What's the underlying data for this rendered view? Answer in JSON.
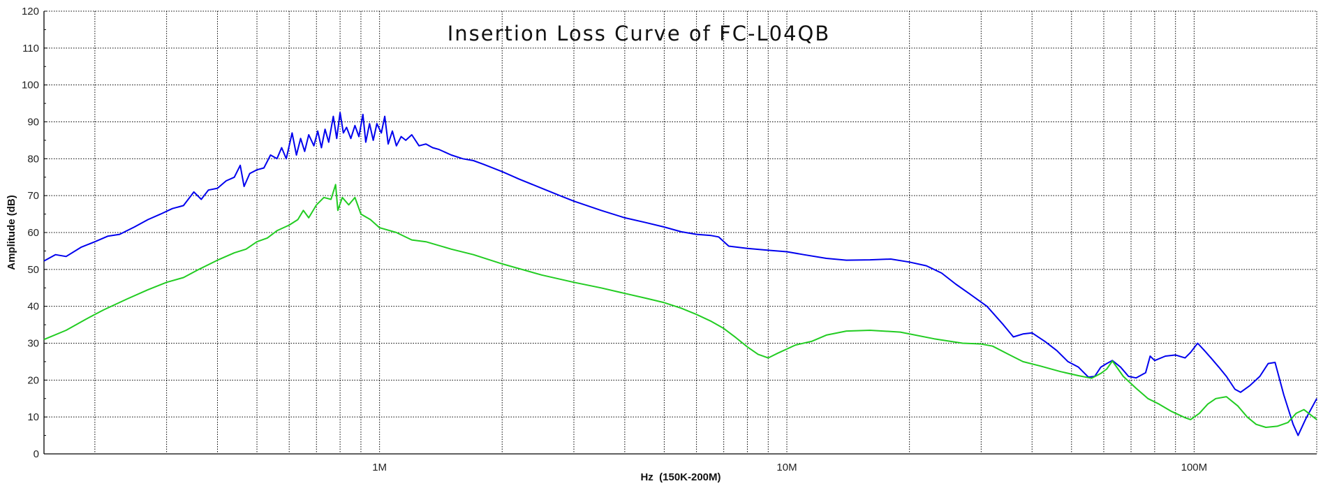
{
  "chart_data": {
    "type": "line",
    "title": "Insertion Loss Curve of FC-L04QB",
    "xlabel": "Hz  (150K-200M)",
    "ylabel": "Amplitude (dB)",
    "xscale": "log",
    "xlim": [
      150000,
      200000000
    ],
    "ylim": [
      0,
      120
    ],
    "grid": true,
    "yticks": [
      0,
      10,
      20,
      30,
      40,
      50,
      60,
      70,
      80,
      90,
      100,
      110,
      120
    ],
    "xtick_labels": [
      {
        "value": 1000000,
        "label": "1M"
      },
      {
        "value": 10000000,
        "label": "10M"
      },
      {
        "value": 100000000,
        "label": "100M"
      }
    ],
    "series": [
      {
        "name": "blue",
        "color": "#0000ee",
        "points": [
          [
            150000,
            52.3
          ],
          [
            160000,
            54
          ],
          [
            170000,
            53.5
          ],
          [
            185000,
            56
          ],
          [
            200000,
            57.5
          ],
          [
            215000,
            59
          ],
          [
            230000,
            59.5
          ],
          [
            250000,
            61.5
          ],
          [
            270000,
            63.5
          ],
          [
            290000,
            65
          ],
          [
            310000,
            66.5
          ],
          [
            330000,
            67.3
          ],
          [
            350000,
            71
          ],
          [
            365000,
            69
          ],
          [
            380000,
            71.5
          ],
          [
            400000,
            72
          ],
          [
            420000,
            74
          ],
          [
            440000,
            75
          ],
          [
            455000,
            78.2
          ],
          [
            465000,
            72.5
          ],
          [
            480000,
            76
          ],
          [
            500000,
            77
          ],
          [
            520000,
            77.5
          ],
          [
            540000,
            81
          ],
          [
            560000,
            80
          ],
          [
            575000,
            83
          ],
          [
            590000,
            80
          ],
          [
            610000,
            87
          ],
          [
            625000,
            81
          ],
          [
            640000,
            85.5
          ],
          [
            655000,
            82
          ],
          [
            670000,
            86.5
          ],
          [
            690000,
            83.5
          ],
          [
            705000,
            87.5
          ],
          [
            720000,
            83
          ],
          [
            735000,
            88
          ],
          [
            750000,
            84.5
          ],
          [
            770000,
            91.5
          ],
          [
            785000,
            85.5
          ],
          [
            800000,
            92.5
          ],
          [
            815000,
            87
          ],
          [
            830000,
            88.5
          ],
          [
            850000,
            85.5
          ],
          [
            870000,
            89
          ],
          [
            890000,
            86
          ],
          [
            910000,
            92
          ],
          [
            925000,
            84.5
          ],
          [
            945000,
            89.5
          ],
          [
            965000,
            85
          ],
          [
            985000,
            89.5
          ],
          [
            1010000,
            87
          ],
          [
            1030000,
            91.5
          ],
          [
            1050000,
            84
          ],
          [
            1075000,
            87.5
          ],
          [
            1100000,
            83.5
          ],
          [
            1130000,
            86
          ],
          [
            1160000,
            85
          ],
          [
            1200000,
            86.5
          ],
          [
            1250000,
            83.5
          ],
          [
            1300000,
            84
          ],
          [
            1350000,
            83
          ],
          [
            1400000,
            82.5
          ],
          [
            1500000,
            81
          ],
          [
            1600000,
            80
          ],
          [
            1700000,
            79.5
          ],
          [
            1800000,
            78.5
          ],
          [
            2000000,
            76.5
          ],
          [
            2200000,
            74.5
          ],
          [
            2500000,
            72
          ],
          [
            2800000,
            69.8
          ],
          [
            3000000,
            68.5
          ],
          [
            3500000,
            66
          ],
          [
            4000000,
            64
          ],
          [
            4500000,
            62.7
          ],
          [
            5000000,
            61.5
          ],
          [
            5500000,
            60.2
          ],
          [
            6000000,
            59.5
          ],
          [
            6500000,
            59.2
          ],
          [
            6800000,
            58.8
          ],
          [
            7200000,
            56.3
          ],
          [
            8000000,
            55.7
          ],
          [
            9000000,
            55.2
          ],
          [
            10000000,
            54.8
          ],
          [
            11000000,
            54
          ],
          [
            12500000,
            53
          ],
          [
            14000000,
            52.5
          ],
          [
            16000000,
            52.6
          ],
          [
            18000000,
            52.8
          ],
          [
            20000000,
            52
          ],
          [
            22000000,
            51
          ],
          [
            24000000,
            49
          ],
          [
            26000000,
            46
          ],
          [
            28000000,
            43.5
          ],
          [
            31000000,
            40
          ],
          [
            34000000,
            35
          ],
          [
            36000000,
            31.7
          ],
          [
            38000000,
            32.5
          ],
          [
            40000000,
            32.8
          ],
          [
            43000000,
            30.5
          ],
          [
            46000000,
            28
          ],
          [
            49000000,
            25
          ],
          [
            52000000,
            23.5
          ],
          [
            55000000,
            20.8
          ],
          [
            57000000,
            21
          ],
          [
            59000000,
            23.5
          ],
          [
            61000000,
            24.5
          ],
          [
            63000000,
            25.3
          ],
          [
            66000000,
            23.5
          ],
          [
            69000000,
            21
          ],
          [
            72000000,
            20.6
          ],
          [
            76000000,
            22
          ],
          [
            78000000,
            26.5
          ],
          [
            80000000,
            25.3
          ],
          [
            85000000,
            26.5
          ],
          [
            90000000,
            26.8
          ],
          [
            95000000,
            26
          ],
          [
            98000000,
            27.5
          ],
          [
            102000000,
            30
          ],
          [
            106000000,
            28
          ],
          [
            110000000,
            26
          ],
          [
            115000000,
            23.5
          ],
          [
            120000000,
            21
          ],
          [
            126000000,
            17.5
          ],
          [
            130000000,
            16.7
          ],
          [
            137000000,
            18.5
          ],
          [
            145000000,
            21
          ],
          [
            152000000,
            24.5
          ],
          [
            158000000,
            24.8
          ],
          [
            166000000,
            16
          ],
          [
            175000000,
            8
          ],
          [
            180000000,
            5
          ],
          [
            188000000,
            9.5
          ],
          [
            200000000,
            15
          ]
        ]
      },
      {
        "name": "green",
        "color": "#22cc22",
        "points": [
          [
            150000,
            31
          ],
          [
            170000,
            33.5
          ],
          [
            190000,
            36.5
          ],
          [
            210000,
            39
          ],
          [
            240000,
            42
          ],
          [
            270000,
            44.5
          ],
          [
            300000,
            46.5
          ],
          [
            330000,
            47.8
          ],
          [
            360000,
            50
          ],
          [
            400000,
            52.5
          ],
          [
            440000,
            54.5
          ],
          [
            470000,
            55.5
          ],
          [
            500000,
            57.5
          ],
          [
            530000,
            58.5
          ],
          [
            560000,
            60.5
          ],
          [
            600000,
            62
          ],
          [
            630000,
            63.5
          ],
          [
            650000,
            66
          ],
          [
            670000,
            64
          ],
          [
            700000,
            67.5
          ],
          [
            730000,
            69.5
          ],
          [
            760000,
            69
          ],
          [
            780000,
            73
          ],
          [
            790000,
            66
          ],
          [
            810000,
            69.5
          ],
          [
            840000,
            67.5
          ],
          [
            870000,
            69.5
          ],
          [
            900000,
            65
          ],
          [
            950000,
            63.5
          ],
          [
            1000000,
            61.3
          ],
          [
            1100000,
            60
          ],
          [
            1200000,
            58
          ],
          [
            1300000,
            57.5
          ],
          [
            1500000,
            55.5
          ],
          [
            1700000,
            54
          ],
          [
            2000000,
            51.5
          ],
          [
            2500000,
            48.5
          ],
          [
            3000000,
            46.5
          ],
          [
            3500000,
            45
          ],
          [
            4000000,
            43.5
          ],
          [
            4500000,
            42.2
          ],
          [
            5000000,
            41
          ],
          [
            5500000,
            39.5
          ],
          [
            6000000,
            37.8
          ],
          [
            6500000,
            36
          ],
          [
            7000000,
            34
          ],
          [
            7500000,
            31.5
          ],
          [
            8000000,
            29
          ],
          [
            8500000,
            27
          ],
          [
            9000000,
            26
          ],
          [
            9500000,
            27.3
          ],
          [
            10500000,
            29.5
          ],
          [
            11500000,
            30.5
          ],
          [
            12500000,
            32.2
          ],
          [
            14000000,
            33.3
          ],
          [
            16000000,
            33.5
          ],
          [
            19000000,
            33
          ],
          [
            23000000,
            31.2
          ],
          [
            27000000,
            30
          ],
          [
            30000000,
            29.8
          ],
          [
            32000000,
            29.2
          ],
          [
            35000000,
            27
          ],
          [
            38000000,
            25
          ],
          [
            42000000,
            23.8
          ],
          [
            47000000,
            22.3
          ],
          [
            52000000,
            21.2
          ],
          [
            56000000,
            20.5
          ],
          [
            59000000,
            21.8
          ],
          [
            61000000,
            23
          ],
          [
            63000000,
            25.2
          ],
          [
            67000000,
            21
          ],
          [
            72000000,
            17.8
          ],
          [
            77000000,
            15
          ],
          [
            82000000,
            13.5
          ],
          [
            88000000,
            11.5
          ],
          [
            95000000,
            9.8
          ],
          [
            98000000,
            9.3
          ],
          [
            103000000,
            11
          ],
          [
            108000000,
            13.5
          ],
          [
            113000000,
            15
          ],
          [
            120000000,
            15.5
          ],
          [
            128000000,
            13
          ],
          [
            135000000,
            10
          ],
          [
            142000000,
            8
          ],
          [
            150000000,
            7.2
          ],
          [
            160000000,
            7.5
          ],
          [
            170000000,
            8.5
          ],
          [
            178000000,
            11
          ],
          [
            186000000,
            12
          ],
          [
            200000000,
            9.3
          ]
        ]
      }
    ]
  }
}
